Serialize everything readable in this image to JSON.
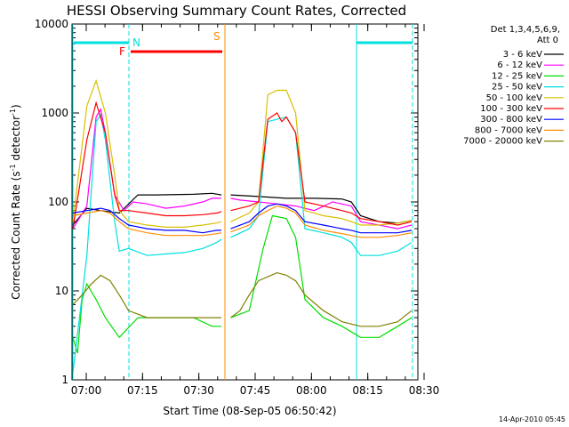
{
  "chart_data": {
    "type": "line",
    "title": "HESSI Observing Summary Count Rates, Corrected",
    "xlabel": "Start Time (08-Sep-05 06:50:42)",
    "ylabel_main": "Corrected Count Rate (s",
    "ylabel_sup1": "-1",
    "ylabel_mid": " detector",
    "ylabel_sup2": "-1",
    "ylabel_end": ")",
    "y_scale": "log",
    "ylim": [
      1,
      10000
    ],
    "xlim": [
      "06:50:42",
      "08:30"
    ],
    "x_ticks": [
      "07:00",
      "07:15",
      "07:30",
      "07:45",
      "08:00",
      "08:15",
      "08:30"
    ],
    "y_ticks": [
      "1",
      "10",
      "100",
      "1000",
      "10000"
    ],
    "legend_title_1": "Det 1,3,4,5,6,9,",
    "legend_title_2": "Att 0",
    "legend_placement": "right",
    "annotations": [
      "N",
      "F",
      "S"
    ],
    "series": [
      {
        "name": "3 - 6 keV",
        "color": "#000000",
        "points": [
          [
            0,
            55
          ],
          [
            3,
            85
          ],
          [
            6,
            80
          ],
          [
            10,
            75
          ],
          [
            14,
            120
          ],
          [
            18,
            120
          ],
          [
            26,
            122
          ],
          [
            30,
            125
          ],
          [
            32,
            120
          ],
          [
            33,
            0
          ],
          [
            34,
            120
          ],
          [
            40,
            115
          ],
          [
            46,
            110
          ],
          [
            52,
            110
          ],
          [
            58,
            108
          ],
          [
            60,
            100
          ],
          [
            62,
            70
          ],
          [
            66,
            60
          ],
          [
            70,
            58
          ],
          [
            73,
            62
          ]
        ]
      },
      {
        "name": "6 - 12 keV",
        "color": "#ff00ff",
        "points": [
          [
            0,
            50
          ],
          [
            3,
            90
          ],
          [
            5,
            900
          ],
          [
            6,
            1100
          ],
          [
            7,
            600
          ],
          [
            9,
            120
          ],
          [
            11,
            80
          ],
          [
            13,
            100
          ],
          [
            16,
            95
          ],
          [
            20,
            85
          ],
          [
            24,
            90
          ],
          [
            28,
            100
          ],
          [
            30,
            110
          ],
          [
            32,
            110
          ],
          [
            33,
            0
          ],
          [
            34,
            110
          ],
          [
            36,
            105
          ],
          [
            40,
            100
          ],
          [
            44,
            95
          ],
          [
            48,
            90
          ],
          [
            52,
            80
          ],
          [
            56,
            100
          ],
          [
            60,
            90
          ],
          [
            62,
            60
          ],
          [
            66,
            55
          ],
          [
            70,
            50
          ],
          [
            73,
            55
          ]
        ]
      },
      {
        "name": "12 - 25 keV",
        "color": "#00dd00",
        "points": [
          [
            0,
            3
          ],
          [
            1,
            2
          ],
          [
            2,
            8
          ],
          [
            3,
            12
          ],
          [
            5,
            8
          ],
          [
            7,
            5
          ],
          [
            10,
            3
          ],
          [
            14,
            5
          ],
          [
            20,
            5
          ],
          [
            26,
            5
          ],
          [
            30,
            4
          ],
          [
            32,
            4
          ],
          [
            33,
            0
          ],
          [
            34,
            5
          ],
          [
            38,
            6
          ],
          [
            41,
            30
          ],
          [
            43,
            70
          ],
          [
            46,
            65
          ],
          [
            48,
            40
          ],
          [
            50,
            8
          ],
          [
            54,
            5
          ],
          [
            58,
            4
          ],
          [
            62,
            3
          ],
          [
            66,
            3
          ],
          [
            70,
            4
          ],
          [
            73,
            5
          ]
        ]
      },
      {
        "name": "25 - 50 keV",
        "color": "#00e0e0",
        "points": [
          [
            0,
            1.2
          ],
          [
            3,
            25
          ],
          [
            5,
            800
          ],
          [
            6,
            950
          ],
          [
            7,
            500
          ],
          [
            9,
            60
          ],
          [
            10,
            28
          ],
          [
            12,
            30
          ],
          [
            16,
            25
          ],
          [
            20,
            26
          ],
          [
            24,
            27
          ],
          [
            28,
            30
          ],
          [
            31,
            35
          ],
          [
            32,
            38
          ],
          [
            33,
            0
          ],
          [
            34,
            40
          ],
          [
            38,
            50
          ],
          [
            40,
            70
          ],
          [
            42,
            800
          ],
          [
            44,
            850
          ],
          [
            46,
            900
          ],
          [
            48,
            600
          ],
          [
            50,
            50
          ],
          [
            54,
            45
          ],
          [
            58,
            40
          ],
          [
            60,
            35
          ],
          [
            62,
            25
          ],
          [
            66,
            25
          ],
          [
            70,
            28
          ],
          [
            73,
            35
          ]
        ]
      },
      {
        "name": "50 - 100 keV",
        "color": "#d8c000",
        "points": [
          [
            0,
            60
          ],
          [
            3,
            1200
          ],
          [
            5,
            2300
          ],
          [
            7,
            1000
          ],
          [
            9,
            200
          ],
          [
            10,
            80
          ],
          [
            12,
            60
          ],
          [
            16,
            55
          ],
          [
            20,
            52
          ],
          [
            24,
            52
          ],
          [
            28,
            55
          ],
          [
            31,
            58
          ],
          [
            32,
            60
          ],
          [
            33,
            0
          ],
          [
            34,
            60
          ],
          [
            38,
            75
          ],
          [
            40,
            100
          ],
          [
            42,
            1600
          ],
          [
            44,
            1800
          ],
          [
            46,
            1800
          ],
          [
            48,
            1000
          ],
          [
            50,
            80
          ],
          [
            54,
            70
          ],
          [
            58,
            65
          ],
          [
            60,
            60
          ],
          [
            62,
            55
          ],
          [
            66,
            55
          ],
          [
            70,
            58
          ],
          [
            73,
            62
          ]
        ]
      },
      {
        "name": "100 - 300 keV",
        "color": "#ff0000",
        "points": [
          [
            0,
            50
          ],
          [
            3,
            500
          ],
          [
            5,
            1300
          ],
          [
            7,
            600
          ],
          [
            9,
            120
          ],
          [
            10,
            80
          ],
          [
            12,
            80
          ],
          [
            16,
            75
          ],
          [
            20,
            70
          ],
          [
            24,
            70
          ],
          [
            28,
            72
          ],
          [
            31,
            75
          ],
          [
            32,
            78
          ],
          [
            33,
            0
          ],
          [
            34,
            80
          ],
          [
            38,
            90
          ],
          [
            40,
            100
          ],
          [
            42,
            850
          ],
          [
            44,
            1000
          ],
          [
            45,
            800
          ],
          [
            46,
            900
          ],
          [
            48,
            600
          ],
          [
            50,
            100
          ],
          [
            54,
            90
          ],
          [
            58,
            80
          ],
          [
            60,
            75
          ],
          [
            62,
            65
          ],
          [
            66,
            60
          ],
          [
            70,
            55
          ],
          [
            73,
            60
          ]
        ]
      },
      {
        "name": "300 - 800 keV",
        "color": "#0000ff",
        "points": [
          [
            0,
            75
          ],
          [
            3,
            80
          ],
          [
            6,
            85
          ],
          [
            8,
            80
          ],
          [
            10,
            65
          ],
          [
            12,
            55
          ],
          [
            16,
            50
          ],
          [
            20,
            48
          ],
          [
            24,
            48
          ],
          [
            28,
            45
          ],
          [
            31,
            48
          ],
          [
            32,
            48
          ],
          [
            33,
            0
          ],
          [
            34,
            50
          ],
          [
            38,
            60
          ],
          [
            40,
            75
          ],
          [
            42,
            90
          ],
          [
            44,
            95
          ],
          [
            46,
            90
          ],
          [
            48,
            80
          ],
          [
            50,
            60
          ],
          [
            54,
            55
          ],
          [
            58,
            50
          ],
          [
            60,
            48
          ],
          [
            62,
            45
          ],
          [
            66,
            45
          ],
          [
            70,
            45
          ],
          [
            73,
            48
          ]
        ]
      },
      {
        "name": "800 - 7000 keV",
        "color": "#ff8c00",
        "points": [
          [
            0,
            70
          ],
          [
            3,
            75
          ],
          [
            6,
            80
          ],
          [
            8,
            75
          ],
          [
            10,
            60
          ],
          [
            12,
            50
          ],
          [
            16,
            45
          ],
          [
            20,
            42
          ],
          [
            24,
            42
          ],
          [
            28,
            42
          ],
          [
            31,
            44
          ],
          [
            32,
            45
          ],
          [
            33,
            0
          ],
          [
            34,
            46
          ],
          [
            38,
            55
          ],
          [
            40,
            70
          ],
          [
            42,
            80
          ],
          [
            44,
            90
          ],
          [
            46,
            85
          ],
          [
            48,
            75
          ],
          [
            50,
            55
          ],
          [
            54,
            48
          ],
          [
            58,
            44
          ],
          [
            60,
            42
          ],
          [
            62,
            40
          ],
          [
            66,
            40
          ],
          [
            70,
            42
          ],
          [
            73,
            45
          ]
        ]
      },
      {
        "name": "7000 - 20000 keV",
        "color": "#808000",
        "points": [
          [
            0,
            7
          ],
          [
            2,
            9
          ],
          [
            4,
            12
          ],
          [
            6,
            15
          ],
          [
            8,
            13
          ],
          [
            10,
            9
          ],
          [
            12,
            6
          ],
          [
            16,
            5
          ],
          [
            20,
            5
          ],
          [
            24,
            5
          ],
          [
            28,
            5
          ],
          [
            31,
            5
          ],
          [
            32,
            5
          ],
          [
            33,
            0
          ],
          [
            34,
            5
          ],
          [
            36,
            6
          ],
          [
            38,
            9
          ],
          [
            40,
            13
          ],
          [
            44,
            16
          ],
          [
            46,
            15
          ],
          [
            48,
            13
          ],
          [
            50,
            9
          ],
          [
            54,
            6
          ],
          [
            58,
            4.5
          ],
          [
            62,
            4
          ],
          [
            66,
            4
          ],
          [
            70,
            4.5
          ],
          [
            73,
            6
          ]
        ]
      }
    ]
  },
  "footer_date": "14-Apr-2010 05:45"
}
